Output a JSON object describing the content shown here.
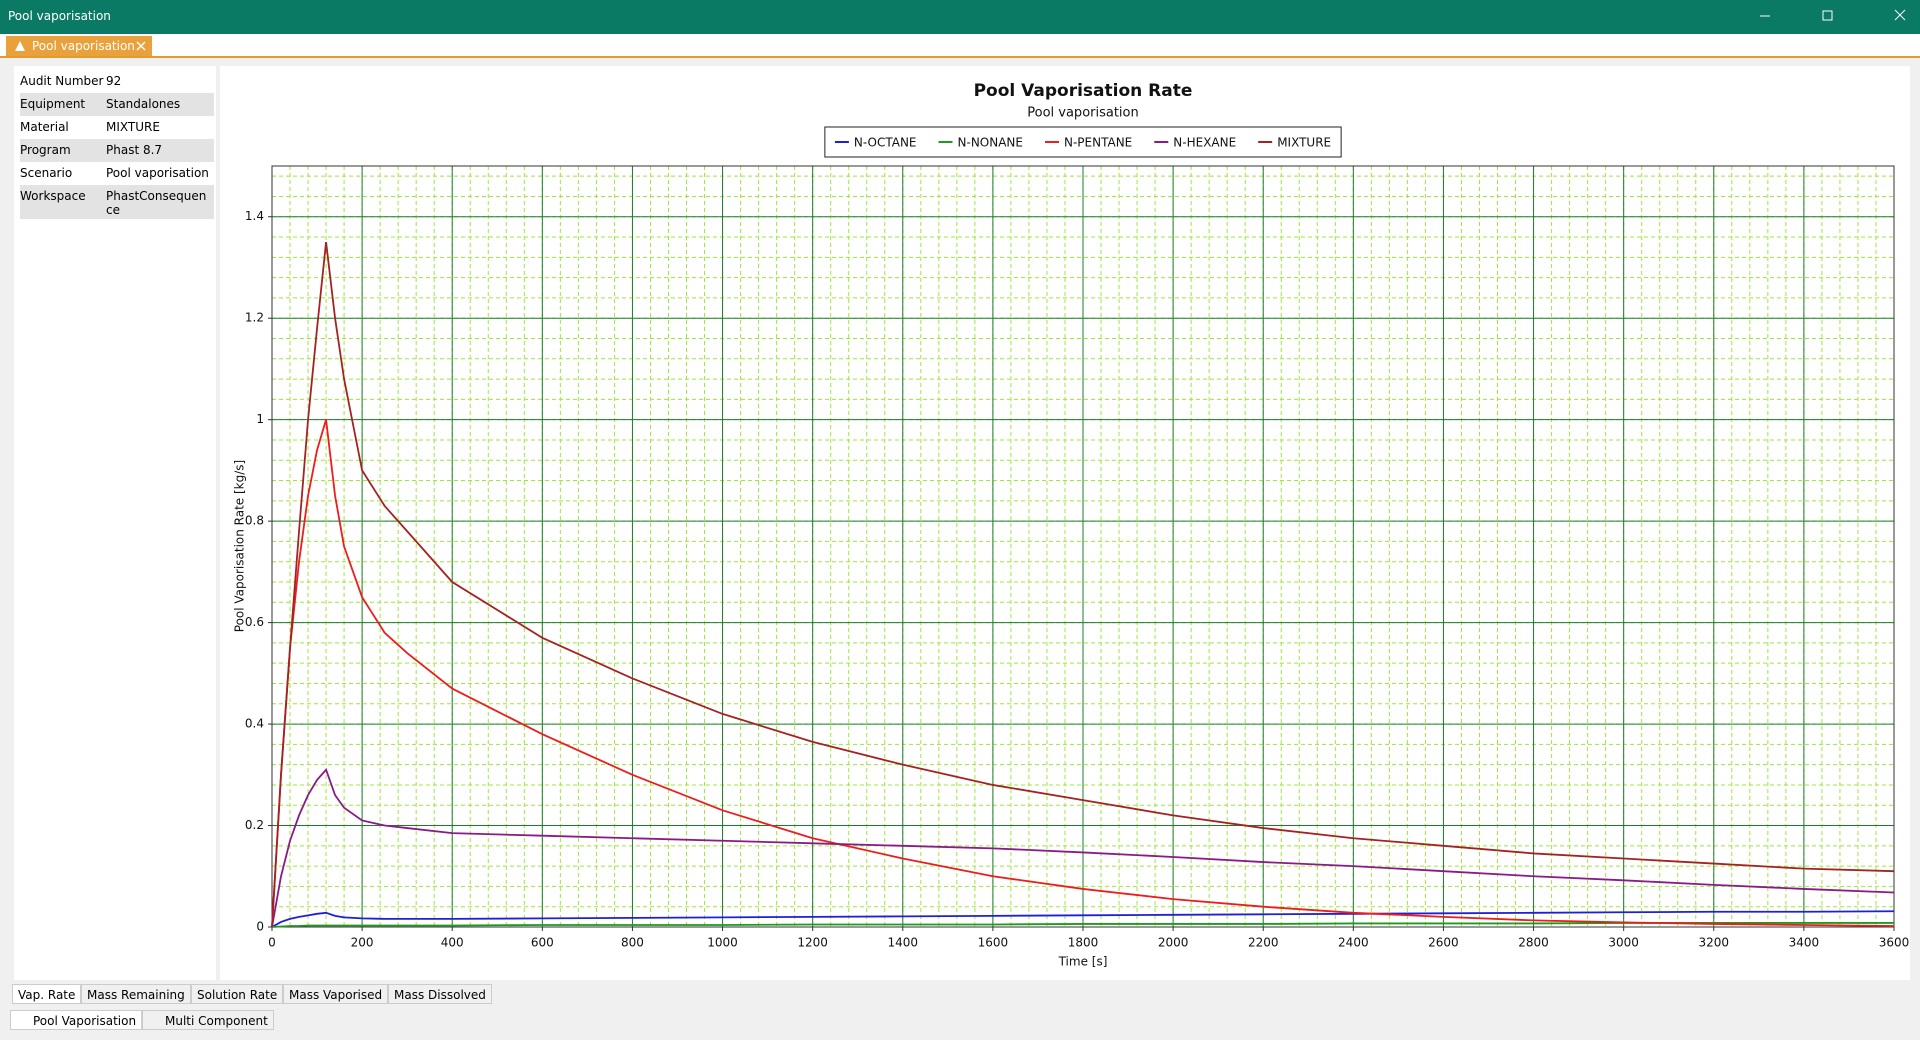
{
  "window": {
    "title": "Pool vaporisation"
  },
  "tab": {
    "title": "Pool vaporisation"
  },
  "audit": {
    "rows": [
      [
        "Audit Number",
        "92"
      ],
      [
        "Equipment",
        "Standalones"
      ],
      [
        "Material",
        "MIXTURE"
      ],
      [
        "Program",
        "Phast 8.7"
      ],
      [
        "Scenario",
        "Pool vaporisation"
      ],
      [
        "Workspace",
        "PhastConsequence"
      ]
    ]
  },
  "chart_data": {
    "type": "line",
    "title": "Pool Vaporisation Rate",
    "subtitle": "Pool vaporisation",
    "x_label": "Time [s]",
    "y_label": "Pool Vaporisation Rate [kg/s]",
    "x": [
      0,
      20,
      40,
      60,
      80,
      100,
      120,
      140,
      160,
      200,
      250,
      300,
      400,
      600,
      800,
      1000,
      1200,
      1400,
      1600,
      1800,
      2000,
      2200,
      2400,
      2600,
      2800,
      3000,
      3200,
      3400,
      3600
    ],
    "series": [
      {
        "name": "N-OCTANE",
        "color": "#1f1fd6",
        "values": [
          0,
          0.01,
          0.016,
          0.02,
          0.023,
          0.026,
          0.028,
          0.022,
          0.019,
          0.017,
          0.016,
          0.016,
          0.016,
          0.017,
          0.018,
          0.019,
          0.02,
          0.021,
          0.022,
          0.023,
          0.024,
          0.025,
          0.026,
          0.027,
          0.028,
          0.029,
          0.03,
          0.03,
          0.031
        ]
      },
      {
        "name": "N-NONANE",
        "color": "#1e9a1e",
        "values": [
          0,
          0.001,
          0.002,
          0.002,
          0.003,
          0.003,
          0.003,
          0.003,
          0.003,
          0.003,
          0.003,
          0.003,
          0.003,
          0.004,
          0.004,
          0.004,
          0.005,
          0.005,
          0.005,
          0.006,
          0.006,
          0.006,
          0.007,
          0.007,
          0.007,
          0.008,
          0.008,
          0.008,
          0.008
        ]
      },
      {
        "name": "N-PENTANE",
        "color": "#ee1c1c",
        "values": [
          0,
          0.3,
          0.55,
          0.72,
          0.85,
          0.94,
          1.0,
          0.85,
          0.75,
          0.65,
          0.58,
          0.54,
          0.47,
          0.38,
          0.3,
          0.23,
          0.175,
          0.135,
          0.1,
          0.075,
          0.055,
          0.04,
          0.028,
          0.02,
          0.013,
          0.009,
          0.006,
          0.004,
          0.002
        ]
      },
      {
        "name": "N-HEXANE",
        "color": "#8a1a8a",
        "values": [
          0,
          0.1,
          0.17,
          0.22,
          0.26,
          0.29,
          0.31,
          0.26,
          0.235,
          0.21,
          0.2,
          0.195,
          0.185,
          0.18,
          0.175,
          0.17,
          0.165,
          0.16,
          0.155,
          0.147,
          0.138,
          0.128,
          0.12,
          0.11,
          0.1,
          0.092,
          0.083,
          0.075,
          0.068
        ]
      },
      {
        "name": "MIXTURE",
        "color": "#a52222",
        "values": [
          0,
          0.3,
          0.55,
          0.78,
          1.0,
          1.18,
          1.35,
          1.2,
          1.08,
          0.9,
          0.83,
          0.78,
          0.68,
          0.57,
          0.49,
          0.42,
          0.365,
          0.32,
          0.28,
          0.25,
          0.22,
          0.195,
          0.175,
          0.16,
          0.145,
          0.135,
          0.125,
          0.115,
          0.11
        ]
      }
    ],
    "xlim": [
      0,
      3600
    ],
    "xticks": [
      0,
      200,
      400,
      600,
      800,
      1000,
      1200,
      1400,
      1600,
      1800,
      2000,
      2200,
      2400,
      2600,
      2800,
      3000,
      3200,
      3400,
      3600
    ],
    "ylim": [
      0,
      1.5
    ],
    "yticks": [
      0,
      0.2,
      0.4,
      0.6,
      0.8,
      1,
      1.2,
      1.4
    ],
    "grid": true,
    "minor_grid": true,
    "grid_color": "#1b7d2a",
    "minor_grid_color": "#9de83a"
  },
  "result_tabs": [
    "Vap. Rate",
    "Mass Remaining",
    "Solution Rate",
    "Mass Vaporised",
    "Mass Dissolved"
  ],
  "view_tabs": [
    "Pool Vaporisation",
    "Multi Component"
  ]
}
